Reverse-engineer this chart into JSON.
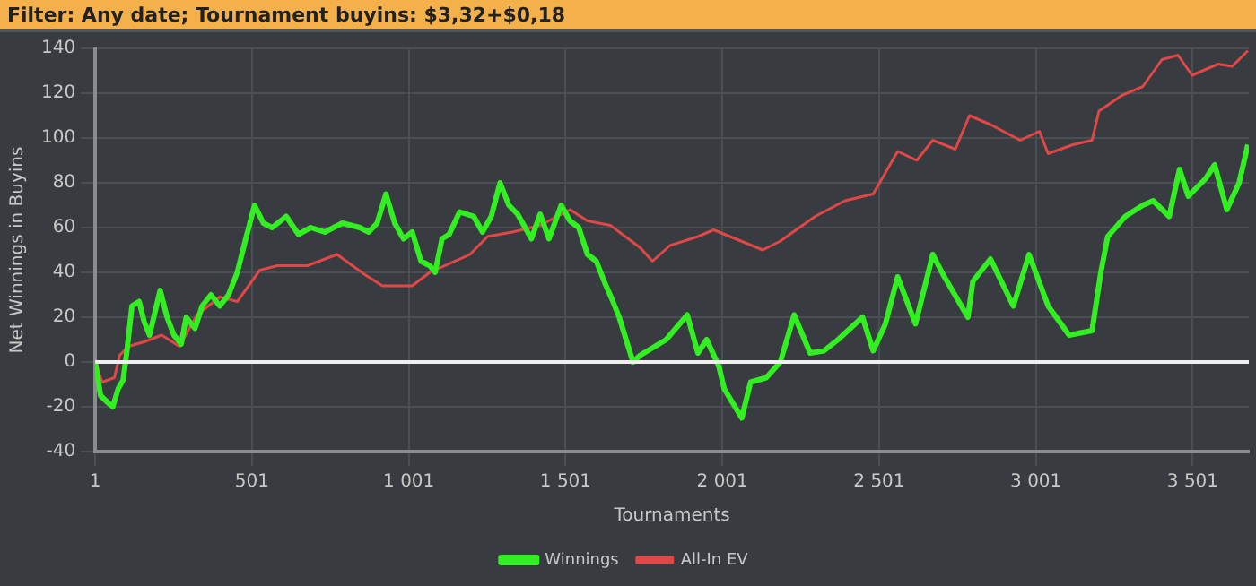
{
  "chart_data": {
    "type": "line",
    "title": "Filter: Any date; Tournament buyins: $3,32+$0,18",
    "xlabel": "Tournaments",
    "ylabel": "Net Winnings in Buyins",
    "xlim": [
      1,
      3680
    ],
    "xticks": [
      {
        "value": 1,
        "label": "1"
      },
      {
        "value": 501,
        "label": "501"
      },
      {
        "value": 1001,
        "label": "1 001"
      },
      {
        "value": 1501,
        "label": "1 501"
      },
      {
        "value": 2001,
        "label": "2 001"
      },
      {
        "value": 2501,
        "label": "2 501"
      },
      {
        "value": 3001,
        "label": "3 001"
      },
      {
        "value": 3501,
        "label": "3 501"
      }
    ],
    "ylim": [
      -40,
      140
    ],
    "yticks": [
      -40,
      -20,
      0,
      20,
      40,
      60,
      80,
      100,
      120,
      140
    ],
    "grid": true,
    "legend": "bottom",
    "marker": "none",
    "line_style": "solid",
    "ref_lines": [
      {
        "axis": "y",
        "value": 0,
        "color": "#f0f0f0"
      }
    ],
    "series": [
      {
        "name": "Winnings",
        "color": "#33ee22",
        "x": [
          1,
          18,
          40,
          57,
          74,
          90,
          102,
          118,
          141,
          157,
          174,
          191,
          208,
          230,
          252,
          275,
          291,
          319,
          342,
          370,
          398,
          426,
          454,
          481,
          509,
          537,
          565,
          610,
          649,
          688,
          733,
          789,
          845,
          873,
          900,
          928,
          956,
          984,
          1012,
          1040,
          1068,
          1085,
          1107,
          1130,
          1163,
          1208,
          1236,
          1264,
          1292,
          1320,
          1348,
          1392,
          1420,
          1448,
          1487,
          1515,
          1543,
          1571,
          1599,
          1627,
          1649,
          1672,
          1694,
          1716,
          1739,
          1822,
          1889,
          1923,
          1951,
          1990,
          2007,
          2063,
          2091,
          2141,
          2186,
          2230,
          2281,
          2325,
          2370,
          2448,
          2482,
          2521,
          2560,
          2617,
          2672,
          2705,
          2784,
          2800,
          2856,
          2929,
          2979,
          3040,
          3107,
          3180,
          3208,
          3230,
          3286,
          3342,
          3375,
          3426,
          3459,
          3487,
          3543,
          3571,
          3610,
          3649,
          3677
        ],
        "values": [
          0,
          -15,
          -18,
          -20,
          -12,
          -8,
          5,
          25,
          27,
          18,
          12,
          22,
          32,
          20,
          12,
          8,
          20,
          15,
          25,
          30,
          25,
          30,
          40,
          55,
          70,
          62,
          60,
          65,
          57,
          60,
          58,
          62,
          60,
          58,
          62,
          75,
          62,
          55,
          58,
          45,
          43,
          40,
          55,
          57,
          67,
          65,
          58,
          65,
          80,
          70,
          66,
          55,
          66,
          55,
          70,
          63,
          60,
          48,
          45,
          35,
          28,
          20,
          10,
          0,
          3,
          10,
          21,
          4,
          10,
          -2,
          -12,
          -25,
          -9,
          -7,
          0,
          21,
          4,
          5,
          10,
          20,
          5,
          17,
          38,
          17,
          48,
          39,
          20,
          36,
          46,
          25,
          48,
          25,
          12,
          14,
          40,
          56,
          65,
          70,
          72,
          65,
          86,
          74,
          82,
          88,
          68,
          80,
          97
        ]
      },
      {
        "name": "All-In EV",
        "color": "#e04848",
        "x": [
          1,
          23,
          62,
          79,
          107,
          157,
          213,
          269,
          325,
          398,
          454,
          526,
          582,
          677,
          772,
          861,
          917,
          1012,
          1068,
          1196,
          1252,
          1331,
          1420,
          1515,
          1571,
          1644,
          1739,
          1778,
          1834,
          1923,
          1973,
          2130,
          2186,
          2297,
          2392,
          2482,
          2560,
          2621,
          2672,
          2744,
          2789,
          2856,
          2951,
          3012,
          3040,
          3119,
          3180,
          3202,
          3275,
          3342,
          3403,
          3454,
          3499,
          3582,
          3627,
          3677
        ],
        "values": [
          0,
          -9,
          -7,
          3,
          7,
          9,
          12,
          7,
          21,
          29,
          27,
          41,
          43,
          43,
          48,
          39,
          34,
          34,
          40,
          48,
          56,
          58,
          61,
          68,
          63,
          61,
          51,
          45,
          52,
          56,
          59,
          50,
          54,
          65,
          72,
          75,
          94,
          90,
          99,
          95,
          110,
          106,
          99,
          103,
          93,
          97,
          99,
          112,
          119,
          123,
          135,
          137,
          128,
          133,
          132,
          139
        ]
      }
    ]
  }
}
